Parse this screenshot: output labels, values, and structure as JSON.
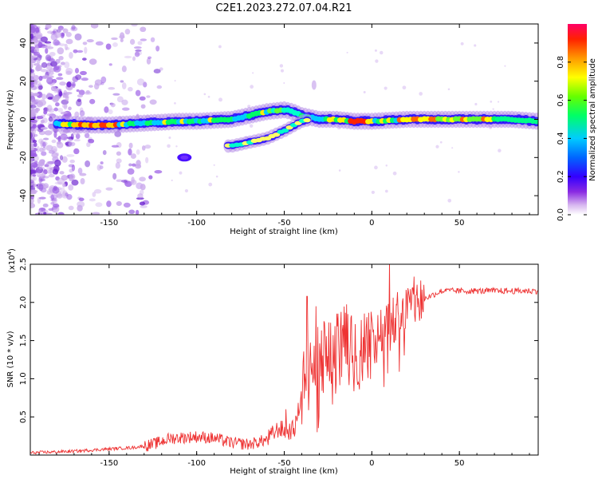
{
  "figure": {
    "title": "C2E1.2023.272.07.04.R21"
  },
  "chart_data": [
    {
      "type": "heatmap",
      "xlabel": "Height of straight line (km)",
      "ylabel": "Frequency (Hz)",
      "xlim": [
        -195,
        95
      ],
      "ylim": [
        -50,
        50
      ],
      "xticks": [
        -150,
        -100,
        -50,
        0,
        50
      ],
      "yticks": [
        -40,
        -20,
        0,
        20,
        40
      ],
      "xtick_labels": [
        "-150",
        "-100",
        "-50",
        "0",
        "50"
      ],
      "ytick_labels": [
        "-40",
        "-20",
        "0",
        "20",
        "40"
      ],
      "colorbar": {
        "label": "Normalized spectral amplitude",
        "range": [
          0,
          1
        ],
        "ticks": [
          0.0,
          0.2,
          0.4,
          0.6,
          0.8
        ],
        "tick_labels": [
          "0.0",
          "0.2",
          "0.4",
          "0.6",
          "0.8"
        ]
      },
      "main_band": [
        [
          -190,
          -2
        ],
        [
          -175,
          -2.5
        ],
        [
          -160,
          -3
        ],
        [
          -150,
          -3
        ],
        [
          -140,
          -2.5
        ],
        [
          -130,
          -2
        ],
        [
          -120,
          -1.5
        ],
        [
          -110,
          -1
        ],
        [
          -100,
          -1
        ],
        [
          -90,
          -0.5
        ],
        [
          -80,
          0
        ],
        [
          -70,
          2
        ],
        [
          -60,
          4
        ],
        [
          -50,
          5
        ],
        [
          -45,
          4
        ],
        [
          -40,
          2
        ],
        [
          -35,
          1
        ],
        [
          -30,
          0
        ],
        [
          -25,
          0
        ],
        [
          -20,
          0
        ],
        [
          -10,
          -1
        ],
        [
          0,
          -1
        ],
        [
          10,
          -0.5
        ],
        [
          20,
          0
        ],
        [
          40,
          0
        ],
        [
          60,
          0
        ],
        [
          80,
          0
        ],
        [
          95,
          -1
        ]
      ],
      "lower_branch": [
        [
          -80,
          -14
        ],
        [
          -70,
          -12
        ],
        [
          -60,
          -10
        ],
        [
          -50,
          -6
        ],
        [
          -40,
          -1
        ],
        [
          -35,
          0
        ]
      ],
      "spot": [
        -107,
        -20
      ]
    },
    {
      "type": "line",
      "xlabel": "Height of straight line (km)",
      "ylabel": "SNR (10 * v/v)",
      "yscale_label": "(x10",
      "yscale_exp": "4",
      "yscale_close": ")",
      "xlim": [
        -195,
        95
      ],
      "ylim": [
        0,
        2.5
      ],
      "xticks": [
        -150,
        -100,
        -50,
        0,
        50
      ],
      "yticks": [
        0.5,
        1.0,
        1.5,
        2.0,
        2.5
      ],
      "xtick_labels": [
        "-150",
        "-100",
        "-50",
        "0",
        "50"
      ],
      "ytick_labels": [
        "0.5",
        "1.0",
        "1.5",
        "2.0",
        "2.5"
      ],
      "color": "#ee3333",
      "envelope": [
        [
          -195,
          0.03
        ],
        [
          -170,
          0.05
        ],
        [
          -150,
          0.08
        ],
        [
          -135,
          0.1
        ],
        [
          -125,
          0.14
        ],
        [
          -115,
          0.22
        ],
        [
          -100,
          0.24
        ],
        [
          -90,
          0.22
        ],
        [
          -80,
          0.16
        ],
        [
          -70,
          0.14
        ],
        [
          -60,
          0.2
        ],
        [
          -53,
          0.35
        ],
        [
          -48,
          0.3
        ],
        [
          -44,
          0.35
        ],
        [
          -40,
          0.8
        ],
        [
          -36,
          1.0
        ],
        [
          -32,
          1.1
        ],
        [
          -28,
          1.25
        ],
        [
          -24,
          1.35
        ],
        [
          -20,
          1.45
        ],
        [
          -15,
          1.4
        ],
        [
          -10,
          1.35
        ],
        [
          -5,
          1.4
        ],
        [
          0,
          1.5
        ],
        [
          5,
          1.6
        ],
        [
          10,
          1.7
        ],
        [
          15,
          1.85
        ],
        [
          20,
          1.95
        ],
        [
          25,
          2.0
        ],
        [
          30,
          2.05
        ],
        [
          35,
          2.1
        ],
        [
          40,
          2.15
        ],
        [
          50,
          2.15
        ],
        [
          70,
          2.15
        ],
        [
          95,
          2.15
        ]
      ],
      "peaks": [
        [
          -37,
          2.08
        ],
        [
          -32,
          1.95
        ],
        [
          10,
          2.55
        ],
        [
          -12,
          1.8
        ],
        [
          -49,
          0.6
        ]
      ]
    }
  ]
}
